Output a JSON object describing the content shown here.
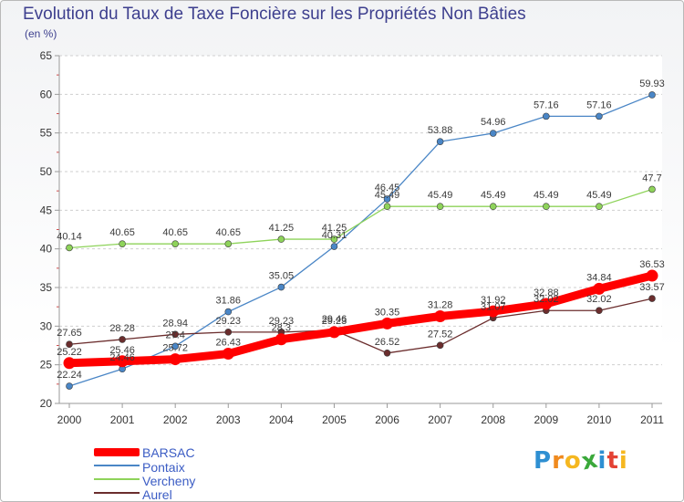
{
  "title": "Evolution du Taux de Taxe Foncière sur les Propriétés Non Bâties",
  "subtitle": "(en %)",
  "brand": {
    "letters": [
      "P",
      "r",
      "o",
      "x",
      "i",
      "t",
      "i"
    ],
    "colors": [
      "#2e8fd2",
      "#f08a1e",
      "#f5b720",
      "#3aa83a",
      "#2e8fd2",
      "#e34234",
      "#f5b720"
    ]
  },
  "chart_data": {
    "type": "line",
    "x": [
      "2000",
      "2001",
      "2002",
      "2003",
      "2004",
      "2005",
      "2006",
      "2007",
      "2008",
      "2009",
      "2010",
      "2011"
    ],
    "ylim": [
      20,
      65
    ],
    "yticks": [
      "20",
      "25",
      "30",
      "35",
      "40",
      "45",
      "50",
      "55",
      "60",
      "65"
    ],
    "grid": "horizontal dashed",
    "legend_position": "bottom-left",
    "series": [
      {
        "name": "BARSAC",
        "color": "#ff0000",
        "values": [
          25.22,
          25.46,
          25.72,
          26.43,
          28.3,
          29.23,
          30.35,
          31.28,
          31.92,
          32.88,
          34.84,
          36.53
        ],
        "labels": [
          "25.22",
          "25.46",
          "25.72",
          "26.43",
          "28.3",
          "29.23",
          "30.35",
          "31.28",
          "31.92",
          "32.88",
          "34.84",
          "36.53"
        ]
      },
      {
        "name": "Pontaix",
        "color": "#4a86c6",
        "values": [
          22.24,
          24.46,
          27.4,
          31.86,
          35.05,
          40.31,
          46.45,
          53.88,
          54.96,
          57.16,
          57.16,
          59.93
        ],
        "labels": [
          "22.24",
          "24.46",
          "27.4",
          "31.86",
          "35.05",
          "40.31",
          "46.45",
          "53.88",
          "54.96",
          "57.16",
          "57.16",
          "59.93"
        ]
      },
      {
        "name": "Vercheny",
        "color": "#8ed35a",
        "values": [
          40.14,
          40.65,
          40.65,
          40.65,
          41.25,
          41.25,
          45.49,
          45.49,
          45.49,
          45.49,
          45.49,
          47.7
        ],
        "labels": [
          "40.14",
          "40.65",
          "40.65",
          "40.65",
          "41.25",
          "41.25",
          "45.49",
          "45.49",
          "45.49",
          "45.49",
          "45.49",
          "47.7"
        ]
      },
      {
        "name": "Aurel",
        "color": "#6b2d2d",
        "values": [
          27.65,
          28.28,
          28.94,
          29.23,
          29.23,
          29.46,
          26.52,
          27.52,
          31.07,
          32.02,
          32.02,
          33.57
        ],
        "labels": [
          "27.65",
          "28.28",
          "28.94",
          "29.23",
          "29.23",
          "29.46",
          "26.52",
          "27.52",
          "31.07",
          "32.02",
          "32.02",
          "33.57"
        ]
      }
    ]
  }
}
